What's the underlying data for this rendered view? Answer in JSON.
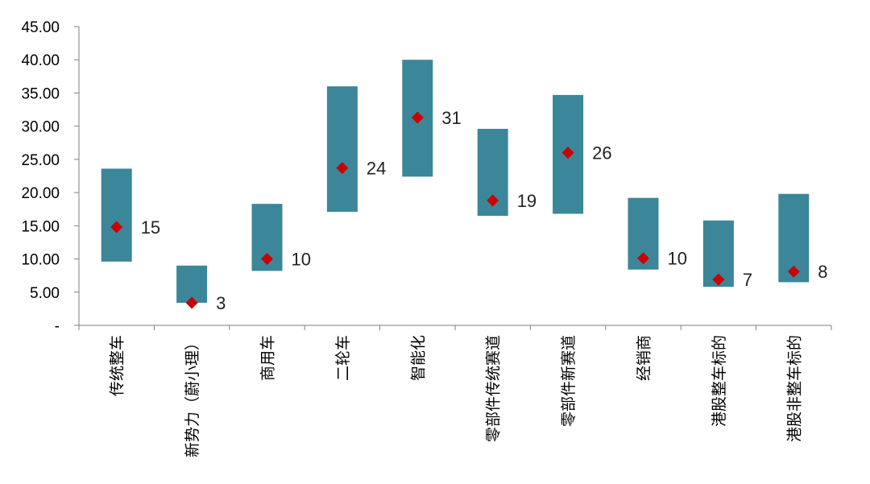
{
  "chart_data": {
    "type": "bar",
    "categories": [
      "传统整车",
      "新势力（蔚小理）",
      "商用车",
      "二轮车",
      "智能化",
      "零部件传统赛道",
      "零部件新赛道",
      "经销商",
      "港股整车标的",
      "港股非整车标的"
    ],
    "series": [
      {
        "values_low": [
          9.6,
          3.4,
          8.2,
          17.1,
          22.4,
          16.5,
          16.8,
          8.4,
          5.8,
          6.5
        ],
        "values_high": [
          23.6,
          9.0,
          18.3,
          36.0,
          40.0,
          29.6,
          34.7,
          19.2,
          15.8,
          19.8
        ]
      },
      {
        "values": [
          14.8,
          3.4,
          10.0,
          23.7,
          31.3,
          18.8,
          26.0,
          10.1,
          6.9,
          8.1
        ]
      }
    ],
    "data_labels": [
      "15",
      "3",
      "10",
      "24",
      "31",
      "19",
      "26",
      "10",
      "7",
      "8"
    ],
    "y_tick_labels": [
      "-",
      "5.00",
      "10.00",
      "15.00",
      "20.00",
      "25.00",
      "30.00",
      "35.00",
      "40.00",
      "45.00"
    ],
    "ylim": [
      0,
      45
    ],
    "title": "",
    "xlabel": "",
    "ylabel": "",
    "grid": false,
    "colors": {
      "range_bar": "#3B8799",
      "marker": "#CC0000",
      "axis": "#7F7F7F"
    }
  }
}
